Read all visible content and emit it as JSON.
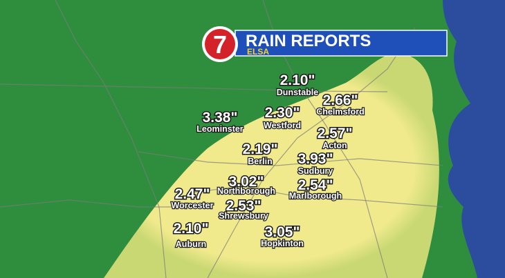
{
  "header": {
    "logo": "7",
    "title": "RAIN REPORTS",
    "subtitle": "ELSA"
  },
  "reports": [
    {
      "amount": "2.10\"",
      "town": "Dunstable"
    },
    {
      "amount": "2.66\"",
      "town": "Chelmsford"
    },
    {
      "amount": "3.38\"",
      "town": "Leominster"
    },
    {
      "amount": "2.30\"",
      "town": "Westford"
    },
    {
      "amount": "2.57\"",
      "town": "Acton"
    },
    {
      "amount": "2.19\"",
      "town": "Berlin"
    },
    {
      "amount": "3.93\"",
      "town": "Sudbury"
    },
    {
      "amount": "3.02\"",
      "town": "Northborough"
    },
    {
      "amount": "2.54\"",
      "town": "Marlborough"
    },
    {
      "amount": "2.47\"",
      "town": "Worcester"
    },
    {
      "amount": "2.53\"",
      "town": "Shrewsbury"
    },
    {
      "amount": "2.10\"",
      "town": "Auburn"
    },
    {
      "amount": "3.05\"",
      "town": "Hopkinton"
    }
  ]
}
